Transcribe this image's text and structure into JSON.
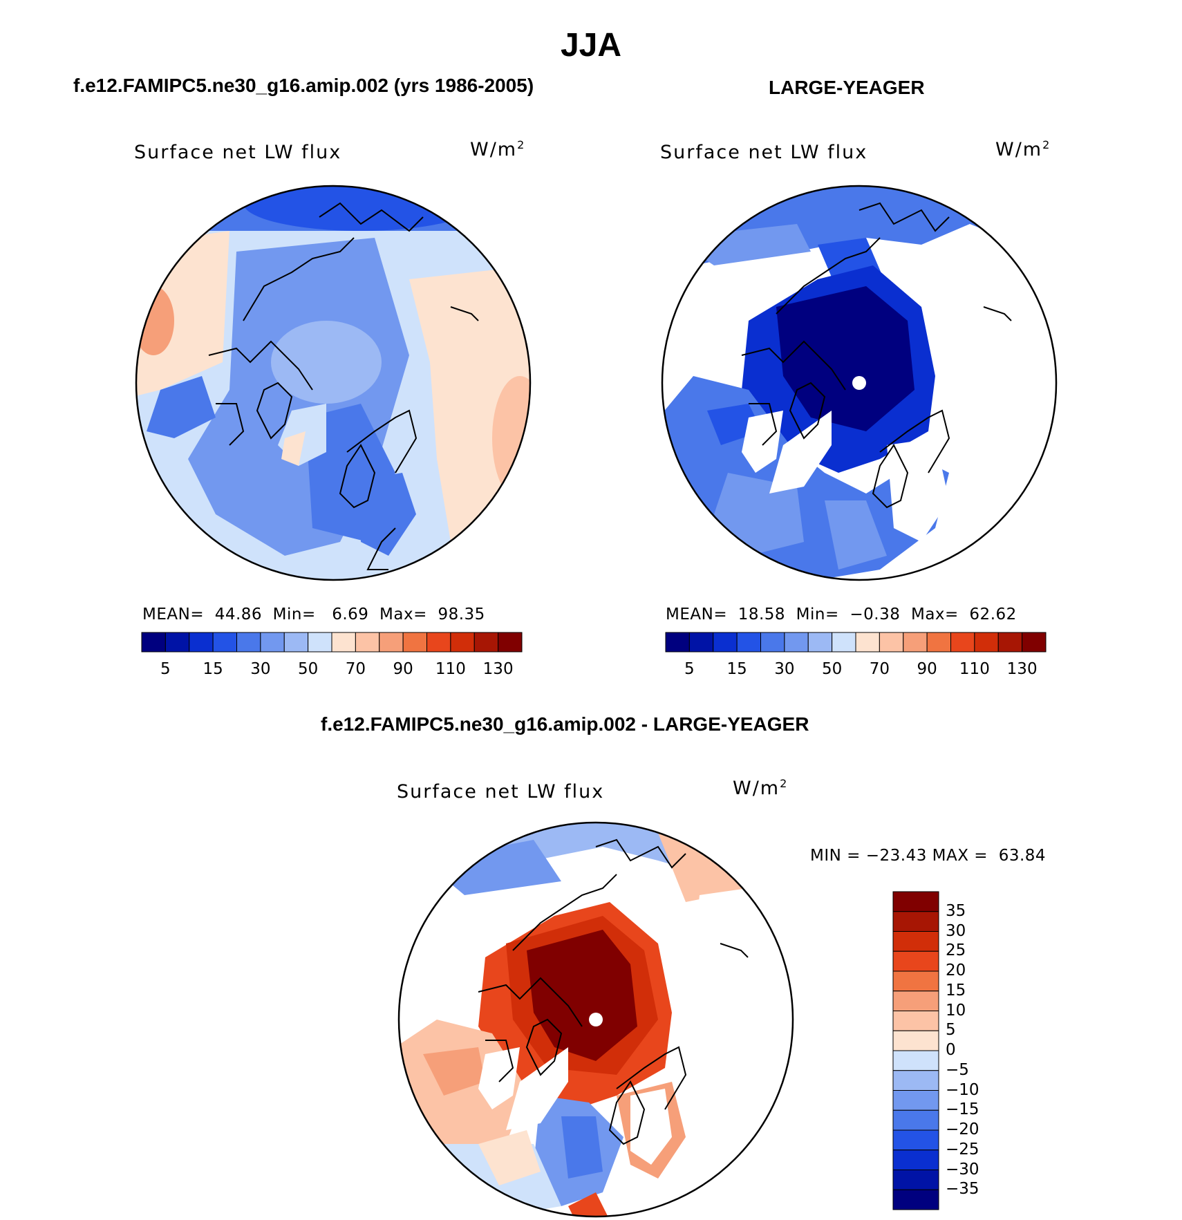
{
  "title": "JJA",
  "colors": {
    "model_scale": [
      "#00007f",
      "#0013a6",
      "#0a2fd0",
      "#2353e6",
      "#4a78ea",
      "#7298ef",
      "#9cb9f4",
      "#cfe2fb",
      "#fde3d0",
      "#fcc3a6",
      "#f69f79",
      "#f07441",
      "#e8461c",
      "#d12e09",
      "#a71604",
      "#800000"
    ],
    "diff_scale": [
      "#00007f",
      "#0013a6",
      "#0a2fd0",
      "#2353e6",
      "#4a78ea",
      "#7298ef",
      "#9cb9f4",
      "#cfe2fb",
      "#fde3d0",
      "#fcc3a6",
      "#f69f79",
      "#f07441",
      "#e8461c",
      "#d12e09",
      "#a71604",
      "#800000"
    ]
  },
  "panels": {
    "left": {
      "header": "f.e12.FAMIPC5.ne30_g16.amip.002 (yrs 1986-2005)",
      "label": "Surface net LW flux",
      "units": "W/m",
      "units_sup": "2",
      "stats": "MEAN=  44.86  Min=   6.69  Max=  98.35"
    },
    "right": {
      "header": "LARGE-YEAGER",
      "label": "Surface net LW flux",
      "units": "W/m",
      "units_sup": "2",
      "stats": "MEAN=  18.58  Min=  −0.38  Max=  62.62"
    },
    "diff": {
      "header": "f.e12.FAMIPC5.ne30_g16.amip.002 - LARGE-YEAGER",
      "label": "Surface net LW flux",
      "units": "W/m",
      "units_sup": "2",
      "stats": "MIN = −23.43 MAX =  63.84"
    }
  },
  "chart_data": [
    {
      "type": "heatmap",
      "projection": "north polar stereographic",
      "title": "f.e12.FAMIPC5.ne30_g16.amip.002 (yrs 1986-2005)",
      "variable": "Surface net LW flux",
      "units": "W/m2",
      "mean": 44.86,
      "min": 6.69,
      "max": 98.35,
      "colorbar_ticks": [
        "5",
        "15",
        "30",
        "50",
        "70",
        "90",
        "110",
        "130"
      ],
      "colorbar_levels": 16
    },
    {
      "type": "heatmap",
      "projection": "north polar stereographic",
      "title": "LARGE-YEAGER",
      "variable": "Surface net LW flux",
      "units": "W/m2",
      "mean": 18.58,
      "min": -0.38,
      "max": 62.62,
      "colorbar_ticks": [
        "5",
        "15",
        "30",
        "50",
        "70",
        "90",
        "110",
        "130"
      ],
      "colorbar_levels": 16
    },
    {
      "type": "heatmap",
      "projection": "north polar stereographic",
      "title": "f.e12.FAMIPC5.ne30_g16.amip.002 - LARGE-YEAGER",
      "variable": "Surface net LW flux",
      "units": "W/m2",
      "min": -23.43,
      "max": 63.84,
      "colorbar_ticks": [
        "35",
        "30",
        "25",
        "20",
        "15",
        "10",
        "5",
        "0",
        "−5",
        "−10",
        "−15",
        "−20",
        "−25",
        "−30",
        "−35"
      ],
      "colorbar_levels": 16
    }
  ]
}
